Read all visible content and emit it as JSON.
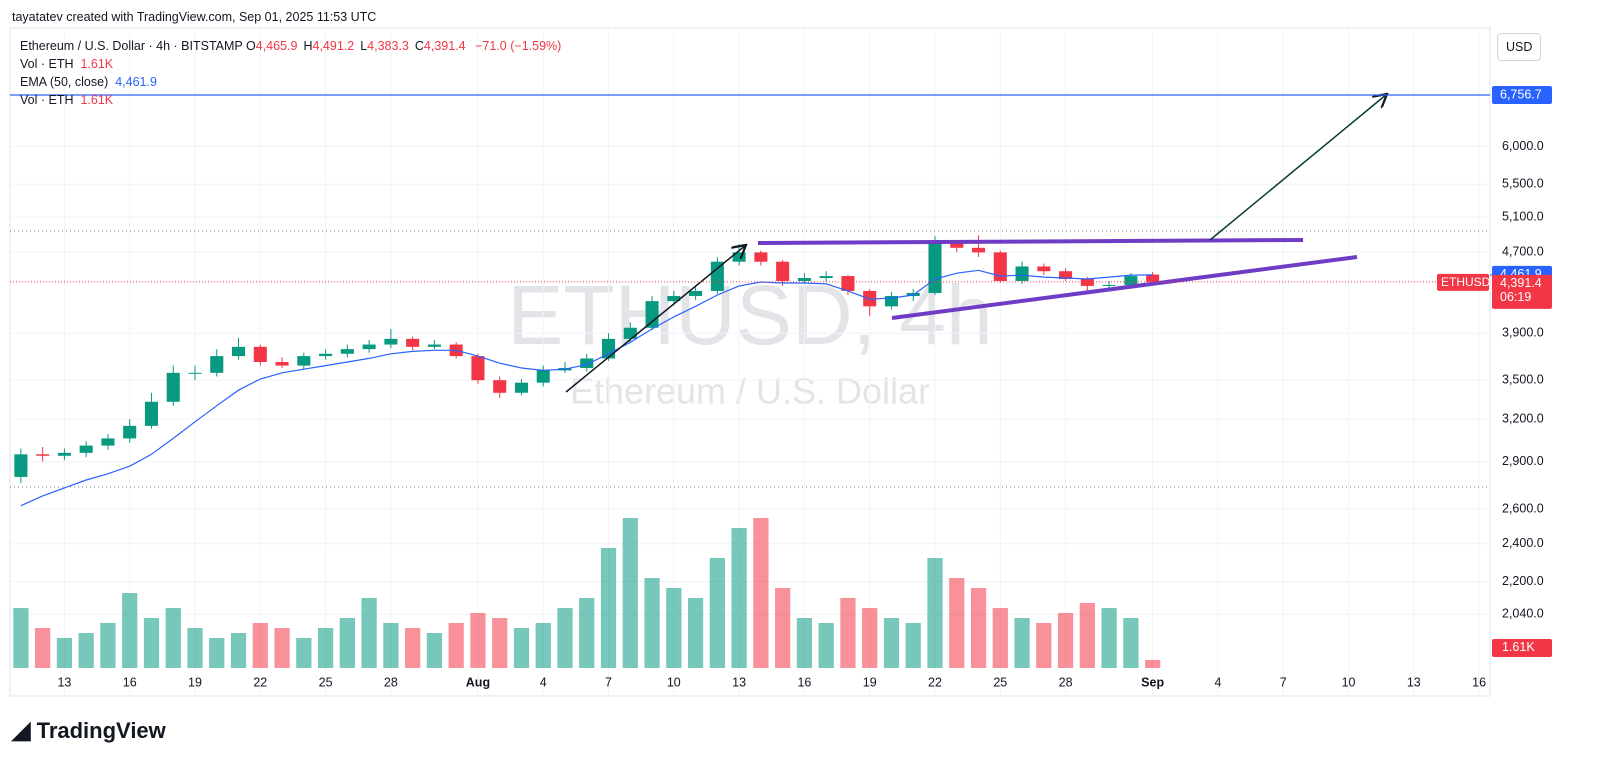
{
  "header": {
    "credit": "tayatatev created with TradingView.com, Sep 01, 2025 11:53 UTC"
  },
  "legend": {
    "symbol": "Ethereum / U.S. Dollar · 4h · BITSTAMP",
    "ohlc": [
      {
        "label": "O",
        "value": "4,465.9"
      },
      {
        "label": "H",
        "value": "4,491.2"
      },
      {
        "label": "L",
        "value": "4,383.3"
      },
      {
        "label": "C",
        "value": "4,391.4"
      }
    ],
    "change": "−71.0 (−1.59%)",
    "vol_label": "Vol · ETH",
    "vol_value": "1.61K",
    "ema_label": "EMA (50, close)",
    "ema_value": "4,461.9",
    "vol_label_2": "Vol · ETH",
    "vol_value_2": "1.61K"
  },
  "watermark": {
    "symbol": "ETHUSD, 4h",
    "name": "Ethereum / U.S. Dollar"
  },
  "currency": "USD",
  "brand": "TradingView",
  "chart_data": {
    "type": "candlestick",
    "log": true,
    "grid": true,
    "x": [
      null,
      null,
      "13",
      null,
      null,
      "16",
      null,
      null,
      "19",
      null,
      null,
      "22",
      null,
      null,
      "25",
      null,
      null,
      "28",
      null,
      null,
      null,
      "Aug",
      null,
      null,
      "4",
      null,
      null,
      "7",
      null,
      null,
      "10",
      null,
      null,
      "13",
      null,
      null,
      "16",
      null,
      null,
      "19",
      null,
      null,
      "22",
      null,
      null,
      "25",
      null,
      null,
      "28",
      null,
      null,
      null,
      "Sep",
      null,
      null,
      "4",
      null,
      null,
      "7",
      null,
      null,
      "10",
      null,
      null,
      "13",
      null,
      null,
      "16"
    ],
    "open": [
      2800,
      2950,
      2940,
      2960,
      3010,
      3060,
      3150,
      3330,
      3560,
      3560,
      3700,
      3780,
      3650,
      3620,
      3700,
      3720,
      3760,
      3800,
      3850,
      3780,
      3800,
      3700,
      3500,
      3400,
      3480,
      3580,
      3600,
      3680,
      3850,
      3950,
      4200,
      4250,
      4300,
      4600,
      4700,
      4600,
      4400,
      4430,
      4450,
      4300,
      4150,
      4250,
      4280,
      4800,
      4750,
      4700,
      4400,
      4550,
      4500,
      4420,
      4350,
      4360,
      4465.9,
      null,
      null,
      null,
      null,
      null,
      null,
      null,
      null,
      null,
      null,
      null,
      null,
      null,
      null,
      null
    ],
    "high": [
      2990,
      3000,
      2990,
      3040,
      3090,
      3200,
      3400,
      3620,
      3620,
      3760,
      3860,
      3800,
      3690,
      3730,
      3760,
      3800,
      3840,
      3940,
      3870,
      3840,
      3820,
      3720,
      3530,
      3510,
      3620,
      3650,
      3720,
      3900,
      4000,
      4250,
      4300,
      4350,
      4650,
      4790,
      4720,
      4620,
      4480,
      4500,
      4460,
      4320,
      4290,
      4320,
      4880,
      4820,
      4890,
      4720,
      4600,
      4580,
      4530,
      4440,
      4400,
      4480,
      4491.2,
      null,
      null,
      null,
      null,
      null,
      null,
      null,
      null,
      null,
      null,
      null,
      null,
      null,
      null,
      null
    ],
    "low": [
      2760,
      2900,
      2910,
      2930,
      2980,
      3030,
      3130,
      3300,
      3500,
      3530,
      3670,
      3620,
      3600,
      3590,
      3670,
      3690,
      3730,
      3770,
      3750,
      3760,
      3680,
      3470,
      3360,
      3380,
      3450,
      3560,
      3570,
      3660,
      3820,
      3930,
      4160,
      4210,
      4270,
      4560,
      4560,
      4350,
      4370,
      4390,
      4260,
      4060,
      4120,
      4200,
      4260,
      4700,
      4650,
      4380,
      4370,
      4460,
      4400,
      4300,
      4310,
      4330,
      4383.3,
      null,
      null,
      null,
      null,
      null,
      null,
      null,
      null,
      null,
      null,
      null,
      null,
      null,
      null,
      null
    ],
    "close": [
      2950,
      2940,
      2960,
      3010,
      3060,
      3150,
      3330,
      3560,
      3560,
      3700,
      3780,
      3650,
      3620,
      3700,
      3720,
      3760,
      3800,
      3850,
      3780,
      3800,
      3700,
      3500,
      3400,
      3480,
      3580,
      3600,
      3680,
      3850,
      3950,
      4200,
      4250,
      4300,
      4600,
      4700,
      4600,
      4400,
      4430,
      4450,
      4300,
      4150,
      4250,
      4280,
      4800,
      4750,
      4700,
      4400,
      4550,
      4500,
      4420,
      4350,
      4360,
      4450,
      4391.4,
      null,
      null,
      null,
      null,
      null,
      null,
      null,
      null,
      null,
      null,
      null,
      null,
      null,
      null,
      null
    ],
    "ema": {
      "color": "#2962ff",
      "values": [
        2620,
        2680,
        2730,
        2780,
        2820,
        2870,
        2950,
        3060,
        3180,
        3300,
        3420,
        3510,
        3560,
        3590,
        3620,
        3650,
        3680,
        3720,
        3740,
        3750,
        3750,
        3700,
        3640,
        3600,
        3580,
        3590,
        3630,
        3720,
        3820,
        3940,
        4050,
        4150,
        4260,
        4350,
        4390,
        4380,
        4380,
        4370,
        4300,
        4220,
        4230,
        4260,
        4420,
        4480,
        4510,
        4450,
        4460,
        4440,
        4430,
        4420,
        4440,
        4460,
        4461.9,
        null,
        null,
        null,
        null,
        null,
        null,
        null,
        null,
        null,
        null,
        null,
        null,
        null,
        null,
        null
      ]
    },
    "volume": [
      12,
      8,
      6,
      7,
      9,
      15,
      10,
      12,
      8,
      6,
      7,
      9,
      8,
      6,
      8,
      10,
      14,
      9,
      8,
      7,
      9,
      11,
      10,
      8,
      9,
      12,
      14,
      24,
      30,
      18,
      16,
      14,
      22,
      28,
      30,
      16,
      10,
      9,
      14,
      12,
      10,
      9,
      22,
      18,
      16,
      12,
      10,
      9,
      11,
      13,
      12,
      10,
      1.61,
      null,
      null,
      null,
      null,
      null,
      null,
      null,
      null,
      null,
      null,
      null,
      null,
      null,
      null,
      null
    ],
    "volume_ylim": [
      0,
      32
    ],
    "volume_tag": "1.61K",
    "up_color": "#089981",
    "down_color": "#f23645",
    "ylim": [
      1802,
      7850
    ],
    "yticks": [
      {
        "value": 6000,
        "label": "6,000.0"
      },
      {
        "value": 5500,
        "label": "5,500.0"
      },
      {
        "value": 5100,
        "label": "5,100.0"
      },
      {
        "value": 4700,
        "label": "4,700.0"
      },
      {
        "value": 3900,
        "label": "3,900.0"
      },
      {
        "value": 3500,
        "label": "3,500.0"
      },
      {
        "value": 3200,
        "label": "3,200.0"
      },
      {
        "value": 2900,
        "label": "2,900.0"
      },
      {
        "value": 2600,
        "label": "2,600.0"
      },
      {
        "value": 2400,
        "label": "2,400.0"
      },
      {
        "value": 2200,
        "label": "2,200.0"
      },
      {
        "value": 2040,
        "label": "2,040.0"
      }
    ],
    "target_line": {
      "value": 6756.7,
      "label": "6,756.7",
      "color": "#2962ff"
    },
    "ema_tag": {
      "value": 4461.9,
      "label": "4,461.9"
    },
    "last_price": {
      "value": 4391.4,
      "label": "4,391.4",
      "ticker": "ETHUSD",
      "countdown": "06:19"
    }
  }
}
